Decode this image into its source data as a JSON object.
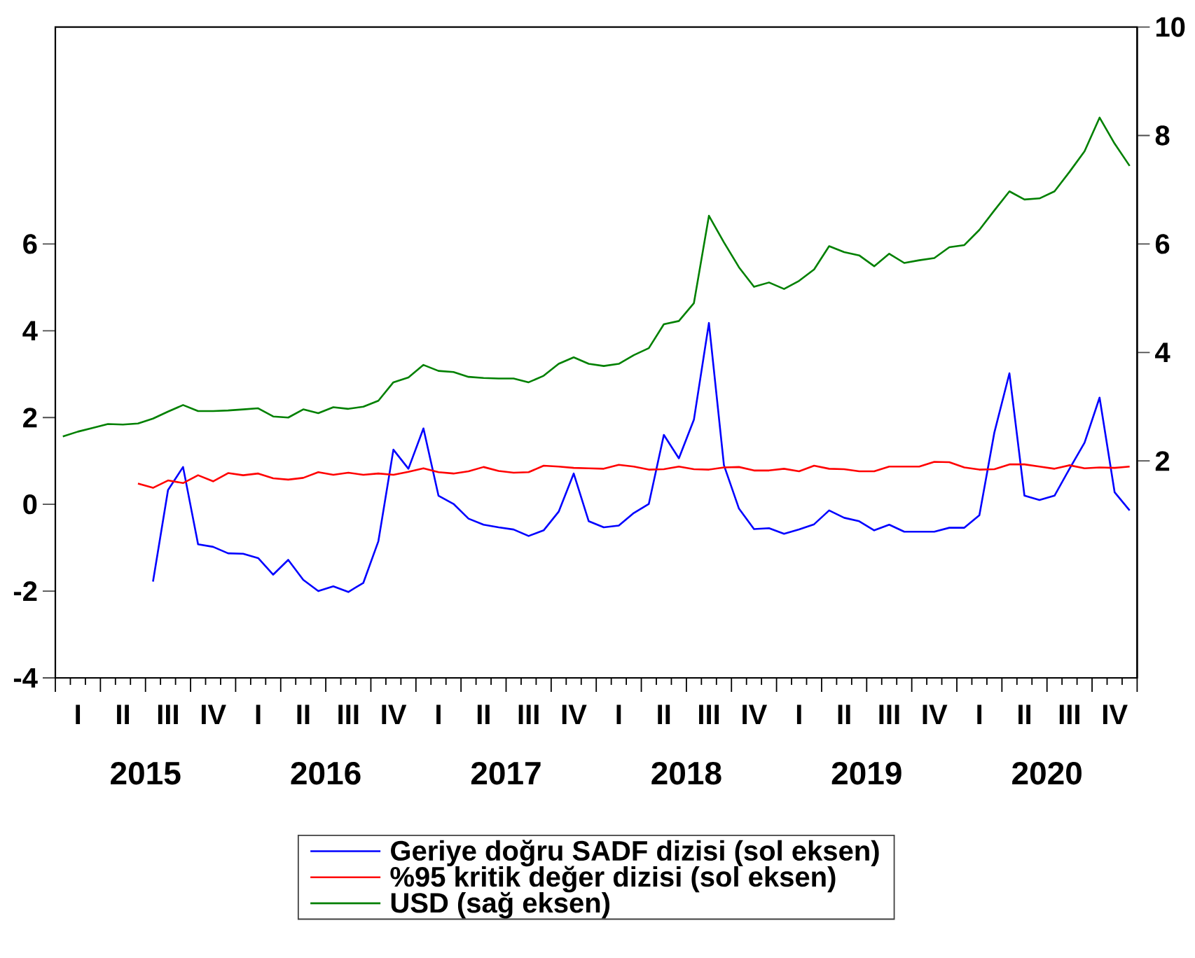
{
  "chart_data": {
    "type": "line",
    "categories": [
      null,
      "I",
      null,
      null,
      "II",
      null,
      null,
      "III",
      null,
      null,
      "IV",
      null,
      null,
      "I",
      null,
      null,
      "II",
      null,
      null,
      "III",
      null,
      null,
      "IV",
      null,
      null,
      "I",
      null,
      null,
      "II",
      null,
      null,
      "III",
      null,
      null,
      "IV",
      null,
      null,
      "I",
      null,
      null,
      "II",
      null,
      null,
      "III",
      null,
      null,
      "IV",
      null,
      null,
      "I",
      null,
      null,
      "II",
      null,
      null,
      "III",
      null,
      null,
      "IV",
      null,
      null,
      "I",
      null,
      null,
      "II",
      null,
      null,
      "III",
      null,
      null,
      "IV",
      null
    ],
    "ylim": [
      -4,
      11
    ],
    "yticks": [
      -4,
      -2,
      0,
      2,
      4,
      6
    ],
    "y2lim": [
      -2,
      10
    ],
    "y2ticks": [
      2,
      4,
      6,
      8,
      10
    ],
    "series": [
      {
        "name": "Geriye doğru SADF dizisi (sol eksen)",
        "color": "#0000ff",
        "values": [
          null,
          null,
          null,
          null,
          null,
          null,
          -1.78,
          0.33,
          0.86,
          -0.92,
          -0.98,
          -1.13,
          -1.14,
          -1.24,
          -1.62,
          -1.28,
          -1.74,
          -2.0,
          -1.89,
          -2.02,
          -1.81,
          -0.85,
          1.26,
          0.82,
          1.75,
          0.2,
          0.01,
          -0.33,
          -0.47,
          -0.53,
          -0.58,
          -0.73,
          -0.6,
          -0.17,
          0.71,
          -0.39,
          -0.53,
          -0.49,
          -0.2,
          0.01,
          1.6,
          1.06,
          1.95,
          4.18,
          0.9,
          -0.1,
          -0.57,
          -0.55,
          -0.68,
          -0.58,
          -0.46,
          -0.14,
          -0.31,
          -0.39,
          -0.6,
          -0.47,
          -0.63,
          -0.63,
          -0.63,
          -0.54,
          -0.54,
          -0.25,
          1.66,
          3.02,
          0.2,
          0.1,
          0.2,
          0.82,
          1.42,
          2.46,
          0.28,
          -0.14
        ]
      },
      {
        "name": "%95 kritik değer dizisi (sol eksen)",
        "color": "#ff0000",
        "values": [
          null,
          null,
          null,
          null,
          null,
          0.48,
          0.38,
          0.55,
          0.49,
          0.67,
          0.53,
          0.72,
          0.67,
          0.71,
          0.6,
          0.57,
          0.61,
          0.74,
          0.68,
          0.73,
          0.68,
          0.71,
          0.68,
          0.75,
          0.83,
          0.74,
          0.71,
          0.76,
          0.86,
          0.77,
          0.73,
          0.74,
          0.89,
          0.87,
          0.84,
          0.83,
          0.82,
          0.91,
          0.87,
          0.8,
          0.81,
          0.87,
          0.81,
          0.8,
          0.85,
          0.86,
          0.78,
          0.78,
          0.82,
          0.76,
          0.89,
          0.82,
          0.81,
          0.76,
          0.76,
          0.87,
          0.87,
          0.87,
          0.98,
          0.97,
          0.85,
          0.8,
          0.81,
          0.92,
          0.92,
          0.87,
          0.82,
          0.9,
          0.83,
          0.85,
          0.84,
          0.87
        ]
      },
      {
        "name": "USD (sağ eksen)",
        "color": "#008000",
        "axis": "y2",
        "values": [
          2.45,
          2.54,
          2.61,
          2.68,
          2.67,
          2.69,
          2.78,
          2.91,
          3.03,
          2.92,
          2.92,
          2.93,
          2.95,
          2.97,
          2.82,
          2.8,
          2.95,
          2.88,
          2.99,
          2.96,
          3.0,
          3.11,
          3.45,
          3.54,
          3.77,
          3.66,
          3.64,
          3.55,
          3.53,
          3.52,
          3.52,
          3.45,
          3.57,
          3.79,
          3.91,
          3.79,
          3.75,
          3.79,
          3.95,
          4.08,
          4.52,
          4.58,
          4.91,
          6.52,
          6.03,
          5.57,
          5.21,
          5.29,
          5.17,
          5.32,
          5.53,
          5.96,
          5.85,
          5.79,
          5.59,
          5.82,
          5.65,
          5.7,
          5.74,
          5.94,
          5.98,
          6.26,
          6.62,
          6.97,
          6.82,
          6.84,
          6.97,
          7.33,
          7.71,
          8.33,
          7.85,
          7.44
        ]
      }
    ],
    "legend": "bottom",
    "annotations": [
      "2015",
      "2016",
      "2017",
      "2018",
      "2019",
      "2020"
    ]
  }
}
